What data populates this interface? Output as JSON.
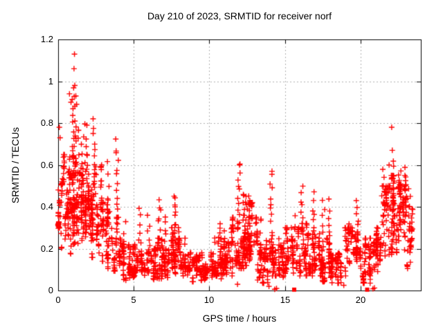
{
  "chart_data": {
    "type": "scatter",
    "title": "Day 210 of 2023, SRMTID for receiver norf",
    "xlabel": "GPS time / hours",
    "ylabel": "SRMTID / TECUs",
    "xlim": [
      0,
      24
    ],
    "ylim": [
      0,
      1.2
    ],
    "x_tick_values": [
      0,
      5,
      10,
      15,
      20
    ],
    "x_tick_labels": [
      "0",
      "5",
      "10",
      "15",
      "20"
    ],
    "y_tick_values": [
      0,
      0.2,
      0.4,
      0.6,
      0.8,
      1,
      1.2
    ],
    "y_tick_labels": [
      "0",
      "0.2",
      "0.4",
      "0.6",
      "0.8",
      "1",
      "1.2"
    ],
    "grid": "dashed-at-major-ticks",
    "legend": "none",
    "marker": {
      "shape": "plus",
      "size": 9,
      "square_size": 6
    },
    "colors": {
      "marker": "#ff0000",
      "grid": "#b0b0b0",
      "frame": "#000000",
      "text": "#000000",
      "background": "#ffffff"
    },
    "seed": 210,
    "density_bins": [
      [
        0,
        0.5,
        65,
        0.28,
        0.65
      ],
      [
        0.5,
        1,
        70,
        0.25,
        0.7
      ],
      [
        1,
        1.5,
        75,
        0.3,
        0.85
      ],
      [
        1.5,
        2,
        70,
        0.25,
        0.65
      ],
      [
        2,
        2.5,
        65,
        0.22,
        0.6
      ],
      [
        2.5,
        3,
        60,
        0.2,
        0.6
      ],
      [
        3,
        3.5,
        38,
        0.15,
        0.45
      ],
      [
        3.5,
        4,
        32,
        0.12,
        0.35
      ],
      [
        4,
        4.5,
        45,
        0.07,
        0.25
      ],
      [
        4.5,
        5,
        45,
        0.07,
        0.22
      ],
      [
        5,
        5.5,
        42,
        0.08,
        0.22
      ],
      [
        5.5,
        6,
        42,
        0.07,
        0.2
      ],
      [
        6,
        6.5,
        42,
        0.07,
        0.2
      ],
      [
        6.5,
        7,
        45,
        0.08,
        0.25
      ],
      [
        7,
        7.5,
        42,
        0.08,
        0.25
      ],
      [
        7.5,
        8,
        48,
        0.1,
        0.3
      ],
      [
        8,
        8.5,
        46,
        0.08,
        0.25
      ],
      [
        8.5,
        9,
        42,
        0.06,
        0.18
      ],
      [
        9,
        9.5,
        42,
        0.06,
        0.17
      ],
      [
        9.5,
        10,
        42,
        0.07,
        0.18
      ],
      [
        10,
        10.5,
        42,
        0.07,
        0.18
      ],
      [
        10.5,
        11,
        45,
        0.08,
        0.25
      ],
      [
        11,
        11.5,
        46,
        0.1,
        0.3
      ],
      [
        11.5,
        12,
        48,
        0.1,
        0.35
      ],
      [
        12,
        12.5,
        60,
        0.15,
        0.45
      ],
      [
        12.5,
        13,
        55,
        0.15,
        0.42
      ],
      [
        13,
        13.5,
        45,
        0.08,
        0.35
      ],
      [
        13.5,
        14,
        40,
        0.05,
        0.3
      ],
      [
        14,
        14.5,
        45,
        0.1,
        0.35
      ],
      [
        14.5,
        15,
        42,
        0.08,
        0.25
      ],
      [
        15,
        15.5,
        40,
        0.1,
        0.3
      ],
      [
        15.5,
        16,
        40,
        0.1,
        0.3
      ],
      [
        16,
        16.5,
        46,
        0.1,
        0.32
      ],
      [
        16.5,
        17,
        46,
        0.1,
        0.3
      ],
      [
        17,
        17.5,
        46,
        0.1,
        0.3
      ],
      [
        17.5,
        18,
        42,
        0.06,
        0.25
      ],
      [
        18,
        18.5,
        42,
        0.04,
        0.18
      ],
      [
        18.5,
        19,
        38,
        0.05,
        0.2
      ],
      [
        19,
        19.5,
        38,
        0.1,
        0.3
      ],
      [
        19.5,
        20,
        42,
        0.1,
        0.28
      ],
      [
        20,
        20.5,
        42,
        0.05,
        0.25
      ],
      [
        20.5,
        21,
        46,
        0.05,
        0.25
      ],
      [
        21,
        21.5,
        46,
        0.08,
        0.3
      ],
      [
        21.5,
        22,
        50,
        0.15,
        0.5
      ],
      [
        22,
        22.5,
        55,
        0.2,
        0.55
      ],
      [
        22.5,
        23,
        55,
        0.25,
        0.55
      ],
      [
        23,
        23.5,
        40,
        0.15,
        0.45
      ]
    ],
    "spikes": [
      [
        0.95,
        0.5,
        0.9,
        12
      ],
      [
        1.1,
        0.55,
        0.96,
        10
      ],
      [
        1.6,
        0.4,
        0.74,
        8
      ],
      [
        1.85,
        0.4,
        0.79,
        8
      ],
      [
        2.4,
        0.4,
        0.82,
        12
      ],
      [
        3.35,
        0.2,
        0.63,
        8
      ],
      [
        3.9,
        0.28,
        0.71,
        14
      ],
      [
        4.4,
        0.12,
        0.33,
        5
      ],
      [
        5.4,
        0.15,
        0.38,
        8
      ],
      [
        6.0,
        0.15,
        0.35,
        7
      ],
      [
        6.7,
        0.18,
        0.43,
        10
      ],
      [
        7.1,
        0.15,
        0.35,
        8
      ],
      [
        7.75,
        0.18,
        0.45,
        14
      ],
      [
        10.3,
        0.1,
        0.26,
        5
      ],
      [
        10.7,
        0.12,
        0.33,
        8
      ],
      [
        11.95,
        0.28,
        0.59,
        12
      ],
      [
        12.3,
        0.25,
        0.47,
        10
      ],
      [
        12.6,
        0.25,
        0.45,
        10
      ],
      [
        14.1,
        0.25,
        0.55,
        10
      ],
      [
        15.6,
        0.15,
        0.35,
        7
      ],
      [
        16.15,
        0.2,
        0.5,
        10
      ],
      [
        16.9,
        0.2,
        0.46,
        9
      ],
      [
        17.55,
        0.18,
        0.42,
        8
      ],
      [
        17.95,
        0.18,
        0.43,
        8
      ],
      [
        19.2,
        0.15,
        0.33,
        7
      ],
      [
        19.8,
        0.18,
        0.43,
        9
      ],
      [
        21.5,
        0.2,
        0.57,
        10
      ],
      [
        22.2,
        0.25,
        0.62,
        12
      ],
      [
        22.6,
        0.28,
        0.58,
        10
      ],
      [
        22.95,
        0.28,
        0.59,
        10
      ],
      [
        23.2,
        0.2,
        0.5,
        7
      ]
    ],
    "outliers": [
      [
        0.08,
        0.78
      ],
      [
        0.13,
        0.73
      ],
      [
        0.75,
        0.94
      ],
      [
        0.85,
        0.9
      ],
      [
        1.08,
        1.13
      ],
      [
        1.05,
        1.06
      ],
      [
        1.1,
        0.98
      ],
      [
        1.17,
        0.93
      ],
      [
        1.22,
        0.89
      ],
      [
        1.9,
        0.79
      ],
      [
        12.0,
        0.6
      ],
      [
        14.15,
        0.57
      ],
      [
        21.9,
        0.6
      ],
      [
        22.07,
        0.78
      ],
      [
        22.11,
        0.67
      ],
      [
        11.87,
        0.03
      ],
      [
        13.2,
        0.05
      ],
      [
        13.3,
        0.06
      ],
      [
        13.95,
        0.02
      ],
      [
        18.9,
        0.025
      ]
    ],
    "axis_points_plus": [
      [
        14.33,
        0.006
      ],
      [
        14.45,
        0.01
      ],
      [
        20.83,
        0.008
      ],
      [
        20.93,
        0.012
      ]
    ],
    "axis_points_square": [
      [
        15.62,
        0.004
      ],
      [
        20.45,
        0.004
      ]
    ]
  }
}
